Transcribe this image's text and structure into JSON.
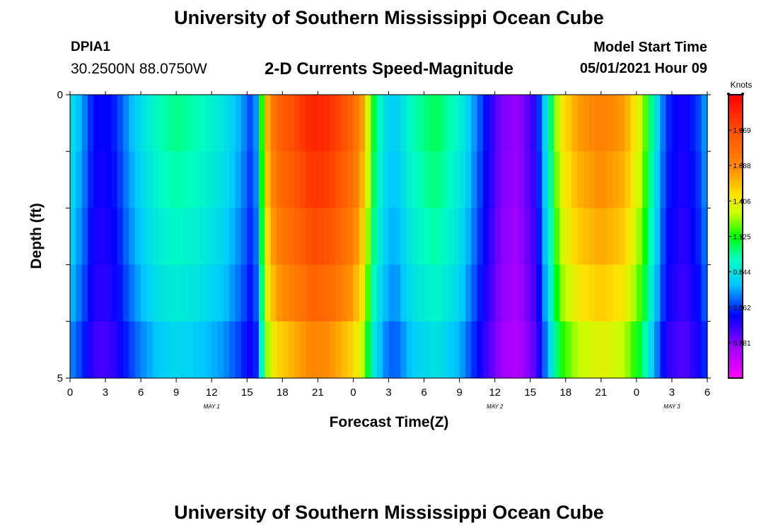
{
  "page_title": "University of Southern Mississippi Ocean Cube",
  "footer_title": "University of Southern Mississippi Ocean Cube",
  "station": {
    "id": "DPIA1",
    "coords": "30.2500N  88.0750W"
  },
  "model": {
    "label": "Model Start Time",
    "time": "05/01/2021 Hour 09"
  },
  "chart_data": {
    "type": "heatmap",
    "title": "2-D Currents Speed-Magnitude",
    "xlabel": "Forecast Time(Z)",
    "ylabel": "Depth (ft)",
    "ylim": [
      0,
      5
    ],
    "y_tick_labels": [
      "0",
      "5"
    ],
    "x_tick_labels": [
      "0",
      "3",
      "6",
      "9",
      "12",
      "15",
      "18",
      "21",
      "0",
      "3",
      "6",
      "9",
      "12",
      "15",
      "18",
      "21",
      "0",
      "3",
      "6"
    ],
    "date_labels": [
      {
        "hour": 12,
        "label": "MAY 1"
      },
      {
        "hour": 36,
        "label": "MAY 2"
      },
      {
        "hour": 51,
        "label": "MAY 3"
      }
    ],
    "hours_start": 0,
    "hours_end": 54,
    "colorbar": {
      "unit": "Knots",
      "min": 0.0,
      "max": 2.25,
      "ticks": [
        "1.969",
        "1.688",
        "1.406",
        "1.125",
        "0.844",
        "0.562",
        "0.281"
      ]
    },
    "depth_layers": [
      0.5,
      1.5,
      2.5,
      3.5,
      4.5
    ],
    "surface_speed_knots": [
      {
        "hour": 0,
        "speed": 0.85
      },
      {
        "hour": 1,
        "speed": 0.7
      },
      {
        "hour": 2,
        "speed": 0.5
      },
      {
        "hour": 3,
        "speed": 0.48
      },
      {
        "hour": 4,
        "speed": 0.55
      },
      {
        "hour": 5,
        "speed": 0.7
      },
      {
        "hour": 6,
        "speed": 0.82
      },
      {
        "hour": 7.5,
        "speed": 0.95
      },
      {
        "hour": 9,
        "speed": 1.0
      },
      {
        "hour": 11,
        "speed": 0.95
      },
      {
        "hour": 13,
        "speed": 0.85
      },
      {
        "hour": 14.5,
        "speed": 0.7
      },
      {
        "hour": 15.5,
        "speed": 0.55
      },
      {
        "hour": 16,
        "speed": 0.8
      },
      {
        "hour": 16.5,
        "speed": 1.5
      },
      {
        "hour": 17.5,
        "speed": 1.85
      },
      {
        "hour": 19,
        "speed": 1.98
      },
      {
        "hour": 20.5,
        "speed": 2.12
      },
      {
        "hour": 22,
        "speed": 2.08
      },
      {
        "hour": 24,
        "speed": 1.85
      },
      {
        "hour": 25,
        "speed": 1.55
      },
      {
        "hour": 25.5,
        "speed": 1.15
      },
      {
        "hour": 26.5,
        "speed": 0.85
      },
      {
        "hour": 27.5,
        "speed": 0.75
      },
      {
        "hour": 29,
        "speed": 0.95
      },
      {
        "hour": 31,
        "speed": 1.05
      },
      {
        "hour": 33,
        "speed": 0.9
      },
      {
        "hour": 35,
        "speed": 0.55
      },
      {
        "hour": 36.5,
        "speed": 0.3
      },
      {
        "hour": 38,
        "speed": 0.25
      },
      {
        "hour": 39.5,
        "speed": 0.45
      },
      {
        "hour": 40.5,
        "speed": 0.9
      },
      {
        "hour": 41.5,
        "speed": 1.4
      },
      {
        "hour": 43,
        "speed": 1.62
      },
      {
        "hour": 45,
        "speed": 1.72
      },
      {
        "hour": 47,
        "speed": 1.62
      },
      {
        "hour": 48.5,
        "speed": 1.3
      },
      {
        "hour": 49.5,
        "speed": 0.9
      },
      {
        "hour": 50.5,
        "speed": 0.55
      },
      {
        "hour": 52,
        "speed": 0.45
      },
      {
        "hour": 53.5,
        "speed": 0.6
      },
      {
        "hour": 54,
        "speed": 0.75
      }
    ],
    "depth_factor": [
      1.0,
      0.97,
      0.93,
      0.88,
      0.8
    ]
  }
}
